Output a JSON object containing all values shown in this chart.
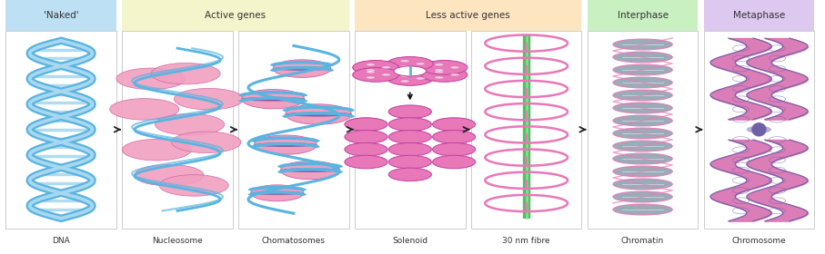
{
  "fig_width": 9.07,
  "fig_height": 2.8,
  "dpi": 100,
  "bg_color": "#ffffff",
  "header_labels": [
    "'Naked'",
    "Active genes",
    "Less active genes",
    "Interphase",
    "Metaphase"
  ],
  "header_colors": [
    "#bde0f5",
    "#f5f5cc",
    "#fde5c0",
    "#c8f0c0",
    "#ddc8f0"
  ],
  "box_labels": [
    "DNA",
    "Nucleosome",
    "Chomatosomes",
    "Solenoid",
    "30 nm fibre",
    "Chromatin",
    "Chromosome"
  ],
  "dna_blue": "#5ab4e0",
  "dna_light": "#a8d8f0",
  "nucl_pink": "#f0a0c0",
  "nucl_edge": "#d060a0",
  "sol_pink": "#e878b8",
  "sol_edge": "#c040a0",
  "chrom_gray": "#9aacb8",
  "chrom_pink": "#e080b8",
  "chr_pink": "#d870b0",
  "chr_purple": "#7060a8",
  "purple_band": "#7050a0",
  "green_axis": "#50c060",
  "arrow_color": "#222222",
  "rung_color": "#90d0f0"
}
